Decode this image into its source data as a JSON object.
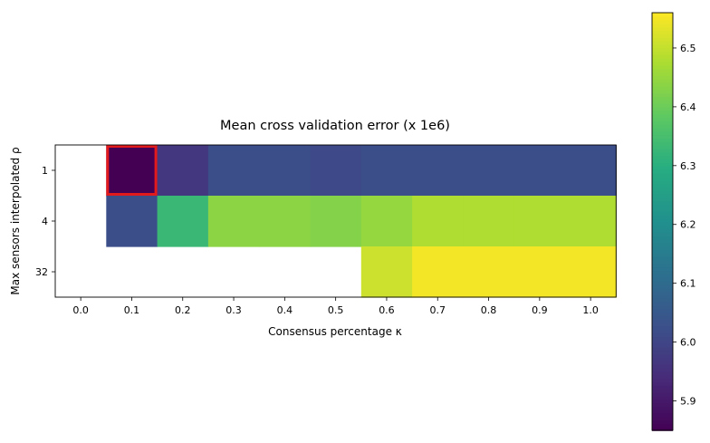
{
  "chart_data": {
    "type": "heatmap",
    "title": "Mean cross validation error (x 1e6)",
    "xlabel": "Consensus percentage κ",
    "ylabel": "Max sensors interpolated ρ",
    "x_categories": [
      "0.0",
      "0.1",
      "0.2",
      "0.3",
      "0.4",
      "0.5",
      "0.6",
      "0.7",
      "0.8",
      "0.9",
      "1.0"
    ],
    "y_categories": [
      "1",
      "4",
      "32"
    ],
    "values": [
      [
        null,
        5.85,
        5.97,
        6.02,
        6.02,
        6.01,
        6.02,
        6.02,
        6.02,
        6.02,
        6.02
      ],
      [
        null,
        6.02,
        6.33,
        6.44,
        6.44,
        6.43,
        6.45,
        6.48,
        6.48,
        6.48,
        6.48
      ],
      [
        null,
        null,
        null,
        null,
        null,
        null,
        6.51,
        6.55,
        6.55,
        6.55,
        6.55
      ]
    ],
    "highlight": {
      "row": "1",
      "column": "0.1",
      "color": "#e31a1c"
    },
    "colorbar": {
      "colormap": "viridis",
      "range": [
        5.85,
        6.56
      ],
      "ticks": [
        "5.9",
        "6.0",
        "6.1",
        "6.2",
        "6.3",
        "6.4",
        "6.5"
      ]
    }
  }
}
